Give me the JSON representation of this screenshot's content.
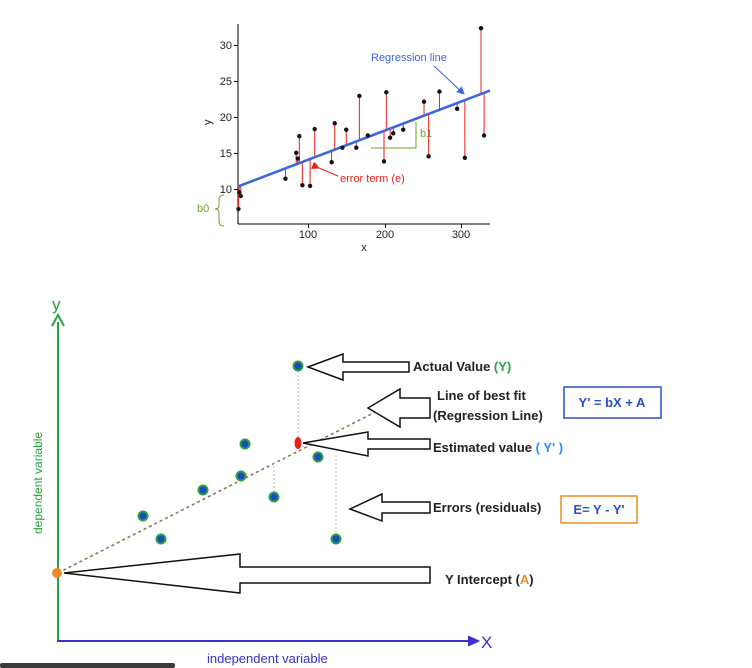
{
  "top_chart": {
    "y_axis_label": "y",
    "x_axis_label": "x",
    "y_ticks": [
      "10",
      "15",
      "20",
      "25",
      "30"
    ],
    "x_ticks": [
      "100",
      "200",
      "300"
    ],
    "regression_label": "Regression line",
    "error_label": "error term (e)",
    "b1_label": "b1",
    "b0_label": "b0",
    "colors": {
      "line": "#3b66e0",
      "error": "#e8201a",
      "point": "#111111",
      "annot": "#6aa62a"
    }
  },
  "chart_data": {
    "type": "scatter",
    "title": "",
    "xlabel": "x",
    "ylabel": "y",
    "xlim": [
      0,
      330
    ],
    "ylim": [
      6,
      33
    ],
    "regression": {
      "intercept": 10,
      "slope": 0.0407
    },
    "points": [
      {
        "x": 12,
        "y": 9.6
      },
      {
        "x": 14,
        "y": 9.1
      },
      {
        "x": 11,
        "y": 7.3
      },
      {
        "x": 72,
        "y": 11.5
      },
      {
        "x": 86,
        "y": 15.1
      },
      {
        "x": 88,
        "y": 14.3
      },
      {
        "x": 90,
        "y": 17.4
      },
      {
        "x": 94,
        "y": 10.6
      },
      {
        "x": 104,
        "y": 10.5
      },
      {
        "x": 110,
        "y": 18.4
      },
      {
        "x": 132,
        "y": 13.8
      },
      {
        "x": 136,
        "y": 19.2
      },
      {
        "x": 146,
        "y": 15.8
      },
      {
        "x": 151,
        "y": 18.3
      },
      {
        "x": 164,
        "y": 15.8
      },
      {
        "x": 168,
        "y": 23.0
      },
      {
        "x": 179,
        "y": 17.5
      },
      {
        "x": 200,
        "y": 13.9
      },
      {
        "x": 203,
        "y": 23.5
      },
      {
        "x": 208,
        "y": 17.2
      },
      {
        "x": 212,
        "y": 17.8
      },
      {
        "x": 225,
        "y": 18.3
      },
      {
        "x": 252,
        "y": 22.2
      },
      {
        "x": 258,
        "y": 14.6
      },
      {
        "x": 272,
        "y": 23.6
      },
      {
        "x": 295,
        "y": 21.2
      },
      {
        "x": 305,
        "y": 14.4
      },
      {
        "x": 326,
        "y": 32.4
      },
      {
        "x": 330,
        "y": 17.5
      }
    ]
  },
  "diagram": {
    "y_label": "y",
    "x_label": "X",
    "y_axis_title": "dependent variable",
    "x_axis_title": "independent variable",
    "actual_value": {
      "text": "Actual Value ",
      "highlight": "(Y)"
    },
    "best_fit_line1": "Line of best fit",
    "best_fit_line2": "(Regression Line)",
    "equation": "Y' = bX + A",
    "estimated": {
      "text": "Estimated value ",
      "highlight": "( Y' )"
    },
    "errors": "Errors (residuals)",
    "error_equation": "E= Y - Y'",
    "intercept": {
      "text": "Y Intercept ",
      "open": "(",
      "highlight": "A",
      "close": ")"
    },
    "colors": {
      "axis_y": "#27a340",
      "axis_x": "#3a2fd0",
      "green_text": "#27a340",
      "blue_text": "#1e90ff",
      "orange": "#f08a24",
      "box_blue": "#2a4fc5",
      "box_orange": "#f08a24",
      "equation_text": "#2a4fc5"
    }
  }
}
